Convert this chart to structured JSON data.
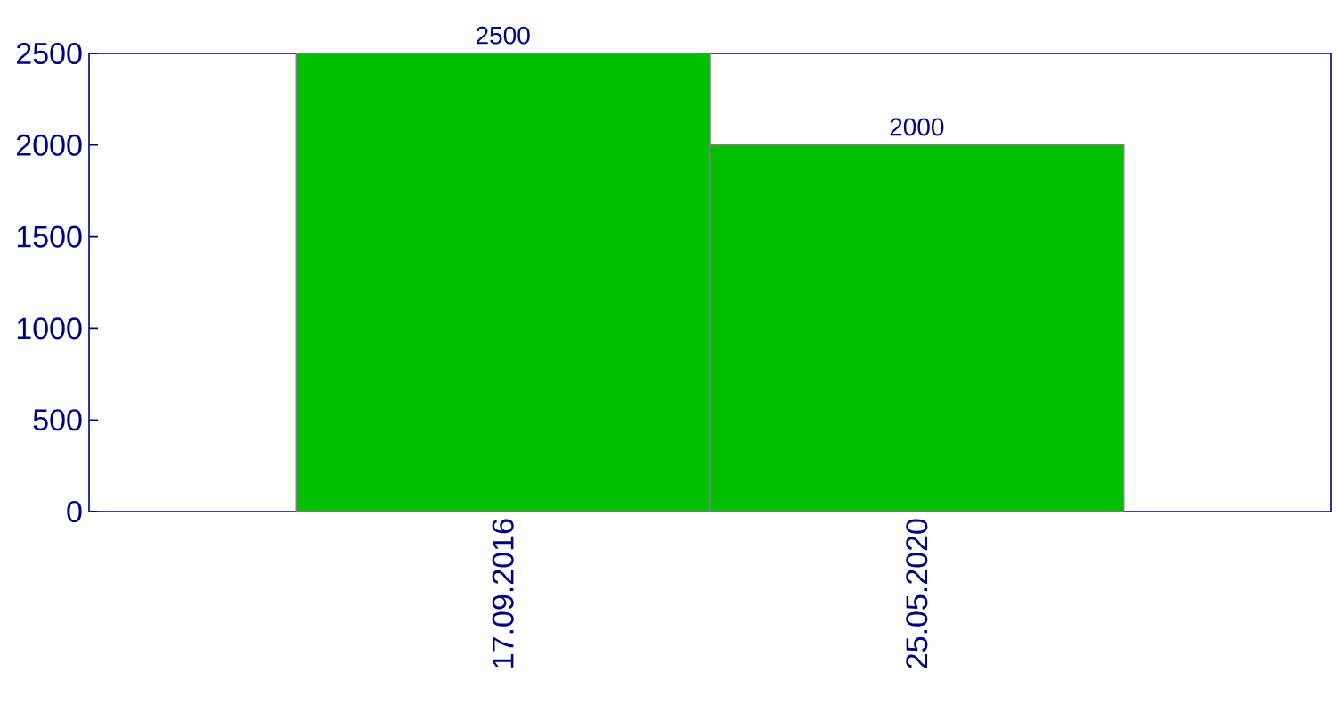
{
  "chart_data": {
    "type": "bar",
    "categories": [
      "17.09.2016",
      "25.05.2020"
    ],
    "values": [
      2500,
      2000
    ],
    "color": "#00bf00",
    "ylim": [
      0,
      2500
    ],
    "yticks": [
      0,
      500,
      1000,
      1500,
      2000,
      2500
    ],
    "data_labels": true
  }
}
